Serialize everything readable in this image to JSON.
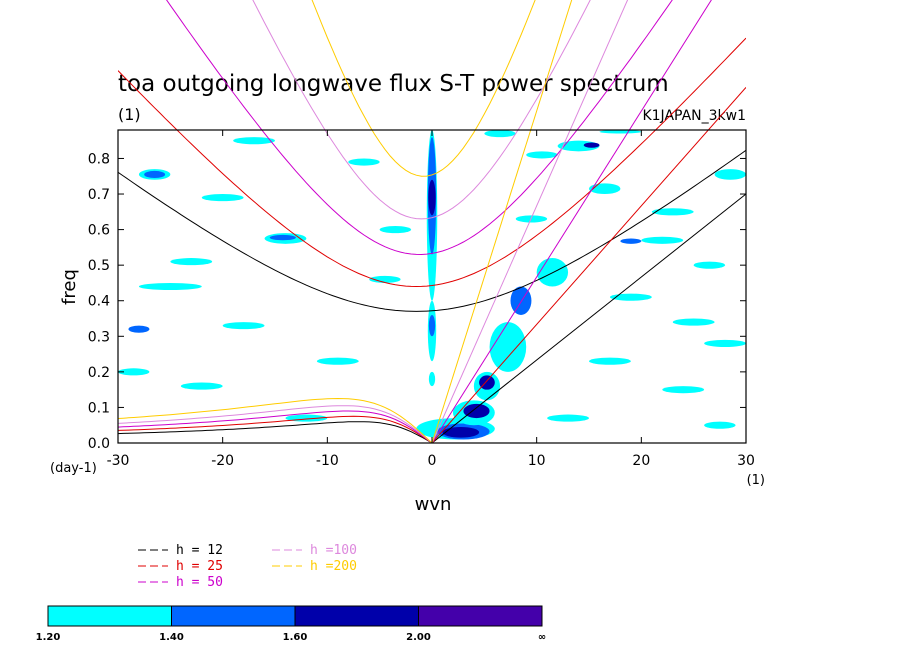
{
  "chart_data": {
    "type": "heatmap",
    "title": "toa outgoing longwave flux S-T power spectrum",
    "subtitle_left": "(1)",
    "subtitle_right": "K1JAPAN_3kw1",
    "xlabel": "wvn",
    "ylabel": "freq",
    "x_unit_label": "(1)",
    "y_unit_label": "(day-1)",
    "xlim": [
      -30,
      30
    ],
    "ylim": [
      0,
      0.88
    ],
    "x_ticks": [
      -30,
      -20,
      -10,
      0,
      10,
      20,
      30
    ],
    "x_tick_labels": [
      "-30",
      "-20",
      "-10",
      "0",
      "10",
      "20",
      "30"
    ],
    "y_ticks": [
      0,
      0.1,
      0.2,
      0.3,
      0.4,
      0.5,
      0.6,
      0.7,
      0.8
    ],
    "y_tick_labels": [
      "0.0",
      "0.1",
      "0.2",
      "0.3",
      "0.4",
      "0.5",
      "0.6",
      "0.7",
      "0.8"
    ],
    "colorbar": {
      "levels": [
        "1.20",
        "1.40",
        "1.60",
        "2.00",
        "∞"
      ],
      "colors": [
        "#00ffff",
        "#0066ff",
        "#0000aa",
        "#4400aa"
      ]
    },
    "legend": [
      {
        "label": "h = 12",
        "color": "#000000"
      },
      {
        "label": "h = 25",
        "color": "#e00000"
      },
      {
        "label": "h = 50",
        "color": "#cc00cc"
      },
      {
        "label": "h =100",
        "color": "#dd88dd"
      },
      {
        "label": "h =200",
        "color": "#ffcc00"
      }
    ],
    "dispersion_curves": [
      {
        "h": 12,
        "color": "#000000",
        "ig_min_freq": 0.37,
        "ig_k_min": -1.5,
        "kelvin_freq_at_k30": 0.7,
        "rossby_peak_freq": 0.06,
        "rossby_peak_k": -7
      },
      {
        "h": 25,
        "color": "#e00000",
        "ig_min_freq": 0.44,
        "ig_k_min": -1.5,
        "kelvin_freq_at_k30": 1.0,
        "rossby_peak_freq": 0.075,
        "rossby_peak_k": -7.5
      },
      {
        "h": 50,
        "color": "#cc00cc",
        "ig_min_freq": 0.53,
        "ig_k_min": -1.2,
        "kelvin_freq_at_k30": 1.4,
        "rossby_peak_freq": 0.09,
        "rossby_peak_k": -8
      },
      {
        "h": 100,
        "color": "#dd88dd",
        "ig_min_freq": 0.63,
        "ig_k_min": -1.0,
        "kelvin_freq_at_k30": 2.0,
        "rossby_peak_freq": 0.105,
        "rossby_peak_k": -8.5
      },
      {
        "h": 200,
        "color": "#ffcc00",
        "ig_min_freq": 0.75,
        "ig_k_min": -0.8,
        "kelvin_freq_at_k30": 2.8,
        "rossby_peak_freq": 0.125,
        "rossby_peak_k": -9
      }
    ],
    "power_regions": [
      {
        "k0": -0.5,
        "k1": 0.5,
        "f0": 0.4,
        "f1": 0.88,
        "level": 1
      },
      {
        "k0": -0.4,
        "k1": 0.4,
        "f0": 0.53,
        "f1": 0.86,
        "level": 2
      },
      {
        "k0": -0.35,
        "k1": 0.35,
        "f0": 0.64,
        "f1": 0.74,
        "level": 3
      },
      {
        "k0": -0.4,
        "k1": 0.4,
        "f0": 0.23,
        "f1": 0.4,
        "level": 1
      },
      {
        "k0": -0.3,
        "k1": 0.3,
        "f0": 0.3,
        "f1": 0.36,
        "level": 2
      },
      {
        "k0": -0.3,
        "k1": 0.3,
        "f0": 0.16,
        "f1": 0.2,
        "level": 1
      },
      {
        "k0": -1.5,
        "k1": 6.0,
        "f0": 0.01,
        "f1": 0.07,
        "level": 1
      },
      {
        "k0": 0.5,
        "k1": 5.5,
        "f0": 0.01,
        "f1": 0.055,
        "level": 2
      },
      {
        "k0": 1.0,
        "k1": 4.5,
        "f0": 0.015,
        "f1": 0.045,
        "level": 3
      },
      {
        "k0": 2.0,
        "k1": 6.0,
        "f0": 0.05,
        "f1": 0.12,
        "level": 1
      },
      {
        "k0": 3.0,
        "k1": 5.5,
        "f0": 0.07,
        "f1": 0.11,
        "level": 3
      },
      {
        "k0": 4.0,
        "k1": 6.5,
        "f0": 0.12,
        "f1": 0.2,
        "level": 1
      },
      {
        "k0": 4.5,
        "k1": 6.0,
        "f0": 0.15,
        "f1": 0.19,
        "level": 3
      },
      {
        "k0": 5.5,
        "k1": 9.0,
        "f0": 0.2,
        "f1": 0.34,
        "level": 1
      },
      {
        "k0": 7.5,
        "k1": 9.5,
        "f0": 0.36,
        "f1": 0.44,
        "level": 2
      },
      {
        "k0": 10.0,
        "k1": 13.0,
        "f0": 0.44,
        "f1": 0.52,
        "level": 1
      },
      {
        "k0": -28.0,
        "k1": -25.0,
        "f0": 0.74,
        "f1": 0.77,
        "level": 1
      },
      {
        "k0": -27.5,
        "k1": -25.5,
        "f0": 0.745,
        "f1": 0.765,
        "level": 2
      },
      {
        "k0": -22.0,
        "k1": -18.0,
        "f0": 0.68,
        "f1": 0.7,
        "level": 1
      },
      {
        "k0": -16.0,
        "k1": -12.0,
        "f0": 0.56,
        "f1": 0.59,
        "level": 1
      },
      {
        "k0": -15.5,
        "k1": -13.0,
        "f0": 0.57,
        "f1": 0.585,
        "level": 2
      },
      {
        "k0": -25.0,
        "k1": -21.0,
        "f0": 0.5,
        "f1": 0.52,
        "level": 1
      },
      {
        "k0": -28.0,
        "k1": -22.0,
        "f0": 0.43,
        "f1": 0.45,
        "level": 1
      },
      {
        "k0": -20.0,
        "k1": -16.0,
        "f0": 0.32,
        "f1": 0.34,
        "level": 1
      },
      {
        "k0": -29.0,
        "k1": -27.0,
        "f0": 0.31,
        "f1": 0.33,
        "level": 2
      },
      {
        "k0": -11.0,
        "k1": -7.0,
        "f0": 0.22,
        "f1": 0.24,
        "level": 1
      },
      {
        "k0": -24.0,
        "k1": -20.0,
        "f0": 0.15,
        "f1": 0.17,
        "level": 1
      },
      {
        "k0": -14.0,
        "k1": -10.0,
        "f0": 0.06,
        "f1": 0.08,
        "level": 1
      },
      {
        "k0": -6.0,
        "k1": -3.0,
        "f0": 0.45,
        "f1": 0.47,
        "level": 1
      },
      {
        "k0": -8.0,
        "k1": -5.0,
        "f0": 0.78,
        "f1": 0.8,
        "level": 1
      },
      {
        "k0": -19.0,
        "k1": -15.0,
        "f0": 0.84,
        "f1": 0.86,
        "level": 1
      },
      {
        "k0": -5.0,
        "k1": -2.0,
        "f0": 0.59,
        "f1": 0.61,
        "level": 1
      },
      {
        "k0": 12.0,
        "k1": 16.0,
        "f0": 0.82,
        "f1": 0.85,
        "level": 1
      },
      {
        "k0": 14.5,
        "k1": 16.0,
        "f0": 0.83,
        "f1": 0.845,
        "level": 3
      },
      {
        "k0": 15.0,
        "k1": 18.0,
        "f0": 0.7,
        "f1": 0.73,
        "level": 1
      },
      {
        "k0": 21.0,
        "k1": 25.0,
        "f0": 0.64,
        "f1": 0.66,
        "level": 1
      },
      {
        "k0": 20.0,
        "k1": 24.0,
        "f0": 0.56,
        "f1": 0.58,
        "level": 1
      },
      {
        "k0": 18.0,
        "k1": 20.0,
        "f0": 0.56,
        "f1": 0.575,
        "level": 2
      },
      {
        "k0": 25.0,
        "k1": 28.0,
        "f0": 0.49,
        "f1": 0.51,
        "level": 1
      },
      {
        "k0": 17.0,
        "k1": 21.0,
        "f0": 0.4,
        "f1": 0.42,
        "level": 1
      },
      {
        "k0": 23.0,
        "k1": 27.0,
        "f0": 0.33,
        "f1": 0.35,
        "level": 1
      },
      {
        "k0": 26.0,
        "k1": 30.0,
        "f0": 0.27,
        "f1": 0.29,
        "level": 1
      },
      {
        "k0": 15.0,
        "k1": 19.0,
        "f0": 0.22,
        "f1": 0.24,
        "level": 1
      },
      {
        "k0": 22.0,
        "k1": 26.0,
        "f0": 0.14,
        "f1": 0.16,
        "level": 1
      },
      {
        "k0": 11.0,
        "k1": 15.0,
        "f0": 0.06,
        "f1": 0.08,
        "level": 1
      },
      {
        "k0": 26.0,
        "k1": 29.0,
        "f0": 0.04,
        "f1": 0.06,
        "level": 1
      },
      {
        "k0": 8.0,
        "k1": 11.0,
        "f0": 0.62,
        "f1": 0.64,
        "level": 1
      },
      {
        "k0": 5.0,
        "k1": 8.0,
        "f0": 0.86,
        "f1": 0.88,
        "level": 1
      },
      {
        "k0": 27.0,
        "k1": 30.0,
        "f0": 0.74,
        "f1": 0.77,
        "level": 1
      },
      {
        "k0": -30.0,
        "k1": -27.0,
        "f0": 0.19,
        "f1": 0.21,
        "level": 1
      },
      {
        "k0": 9.0,
        "k1": 12.0,
        "f0": 0.8,
        "f1": 0.82,
        "level": 1
      },
      {
        "k0": 16.0,
        "k1": 20.0,
        "f0": 0.87,
        "f1": 0.88,
        "level": 1
      }
    ]
  }
}
